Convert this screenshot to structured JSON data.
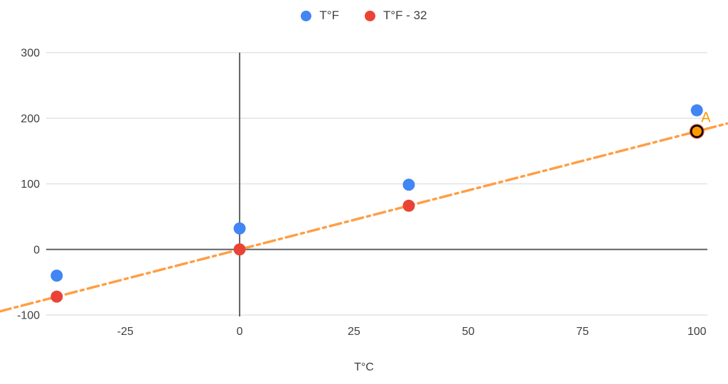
{
  "chart_data": {
    "type": "scatter",
    "title": "",
    "xlabel": "T°C",
    "ylabel": "",
    "x": [
      -40,
      0,
      37,
      100
    ],
    "series": [
      {
        "name": "T°F",
        "color": "#4285f4",
        "values": [
          -40,
          32,
          98.6,
          212
        ]
      },
      {
        "name": "T°F - 32",
        "color": "#ea4335",
        "values": [
          -72,
          0,
          66.6,
          180
        ]
      }
    ],
    "x_ticks": [
      -25,
      0,
      25,
      50,
      75,
      100
    ],
    "y_ticks": [
      -100,
      0,
      100,
      200,
      300
    ],
    "x_range": [
      -42.3,
      102.3
    ],
    "y_range": [
      -100,
      300
    ],
    "grid": true,
    "legend_position": "top",
    "colors": {
      "gridline": "#e3e3e3",
      "zero_axis": "#5f6368",
      "tick_label": "#3c4043"
    },
    "trendline": {
      "series": "T°F - 32",
      "slope": 1.8,
      "intercept": 0,
      "color": "#ff9e45",
      "style": "dash-dot",
      "x_extent": [
        -52.5,
        106.6
      ]
    },
    "highlighted_point": {
      "series": "T°F - 32",
      "x": 100,
      "y": 180,
      "fill": "#ff9900",
      "ring_color": "#000000",
      "halo_color": "#ea4335",
      "label": "A",
      "label_color": "#ff9800"
    }
  }
}
